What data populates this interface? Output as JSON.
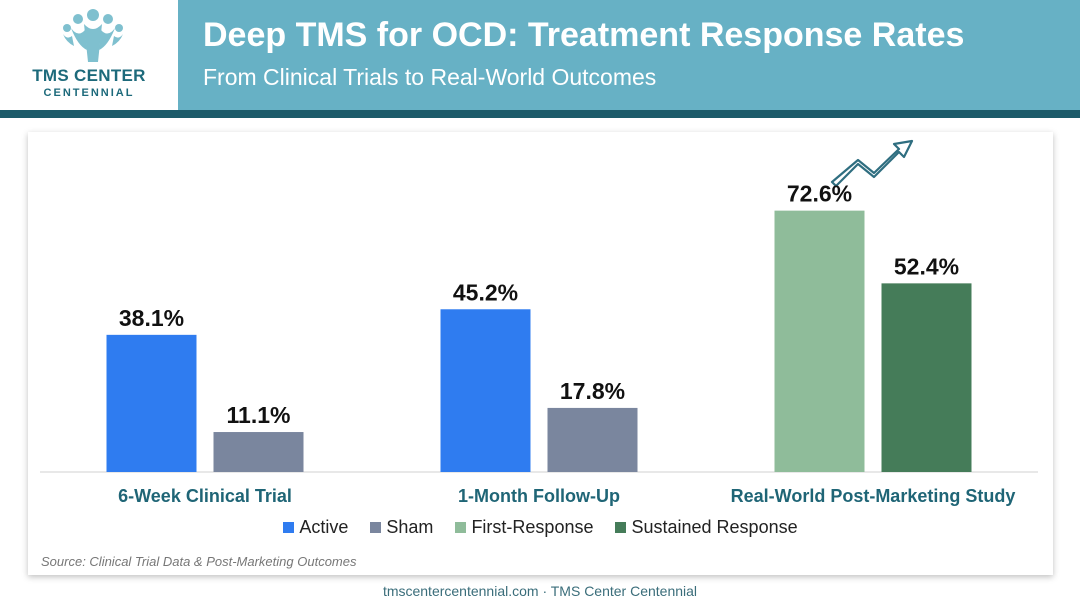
{
  "header": {
    "title": "Deep TMS for OCD: Treatment Response Rates",
    "subtitle": "From Clinical Trials to Real-World Outcomes",
    "logo_name": "TMS CENTER",
    "logo_sub": "CENTENNIAL"
  },
  "chart_data": {
    "type": "bar",
    "categories": [
      "6-Week Clinical Trial",
      "1-Month Follow-Up",
      "Real-World Post-Marketing Study"
    ],
    "series": [
      {
        "name": "Active",
        "color": "#2f7cf0",
        "values": [
          38.1,
          45.2,
          null
        ]
      },
      {
        "name": "Sham",
        "color": "#7a869e",
        "values": [
          11.1,
          17.8,
          null
        ]
      },
      {
        "name": "First-Response",
        "color": "#8fbc9a",
        "values": [
          null,
          null,
          72.6
        ]
      },
      {
        "name": "Sustained Response",
        "color": "#457c59",
        "values": [
          null,
          null,
          52.4
        ]
      }
    ],
    "ylim": [
      0,
      100
    ],
    "grid": false,
    "legend_position": "bottom",
    "value_suffix": "%"
  },
  "source": "Source: Clinical Trial Data & Post-Marketing Outcomes",
  "footer": "tmscentercentennial.com · TMS Center Centennial",
  "icons": {
    "logo": "people-logo-icon",
    "trend": "trend-up-arrow-icon"
  }
}
